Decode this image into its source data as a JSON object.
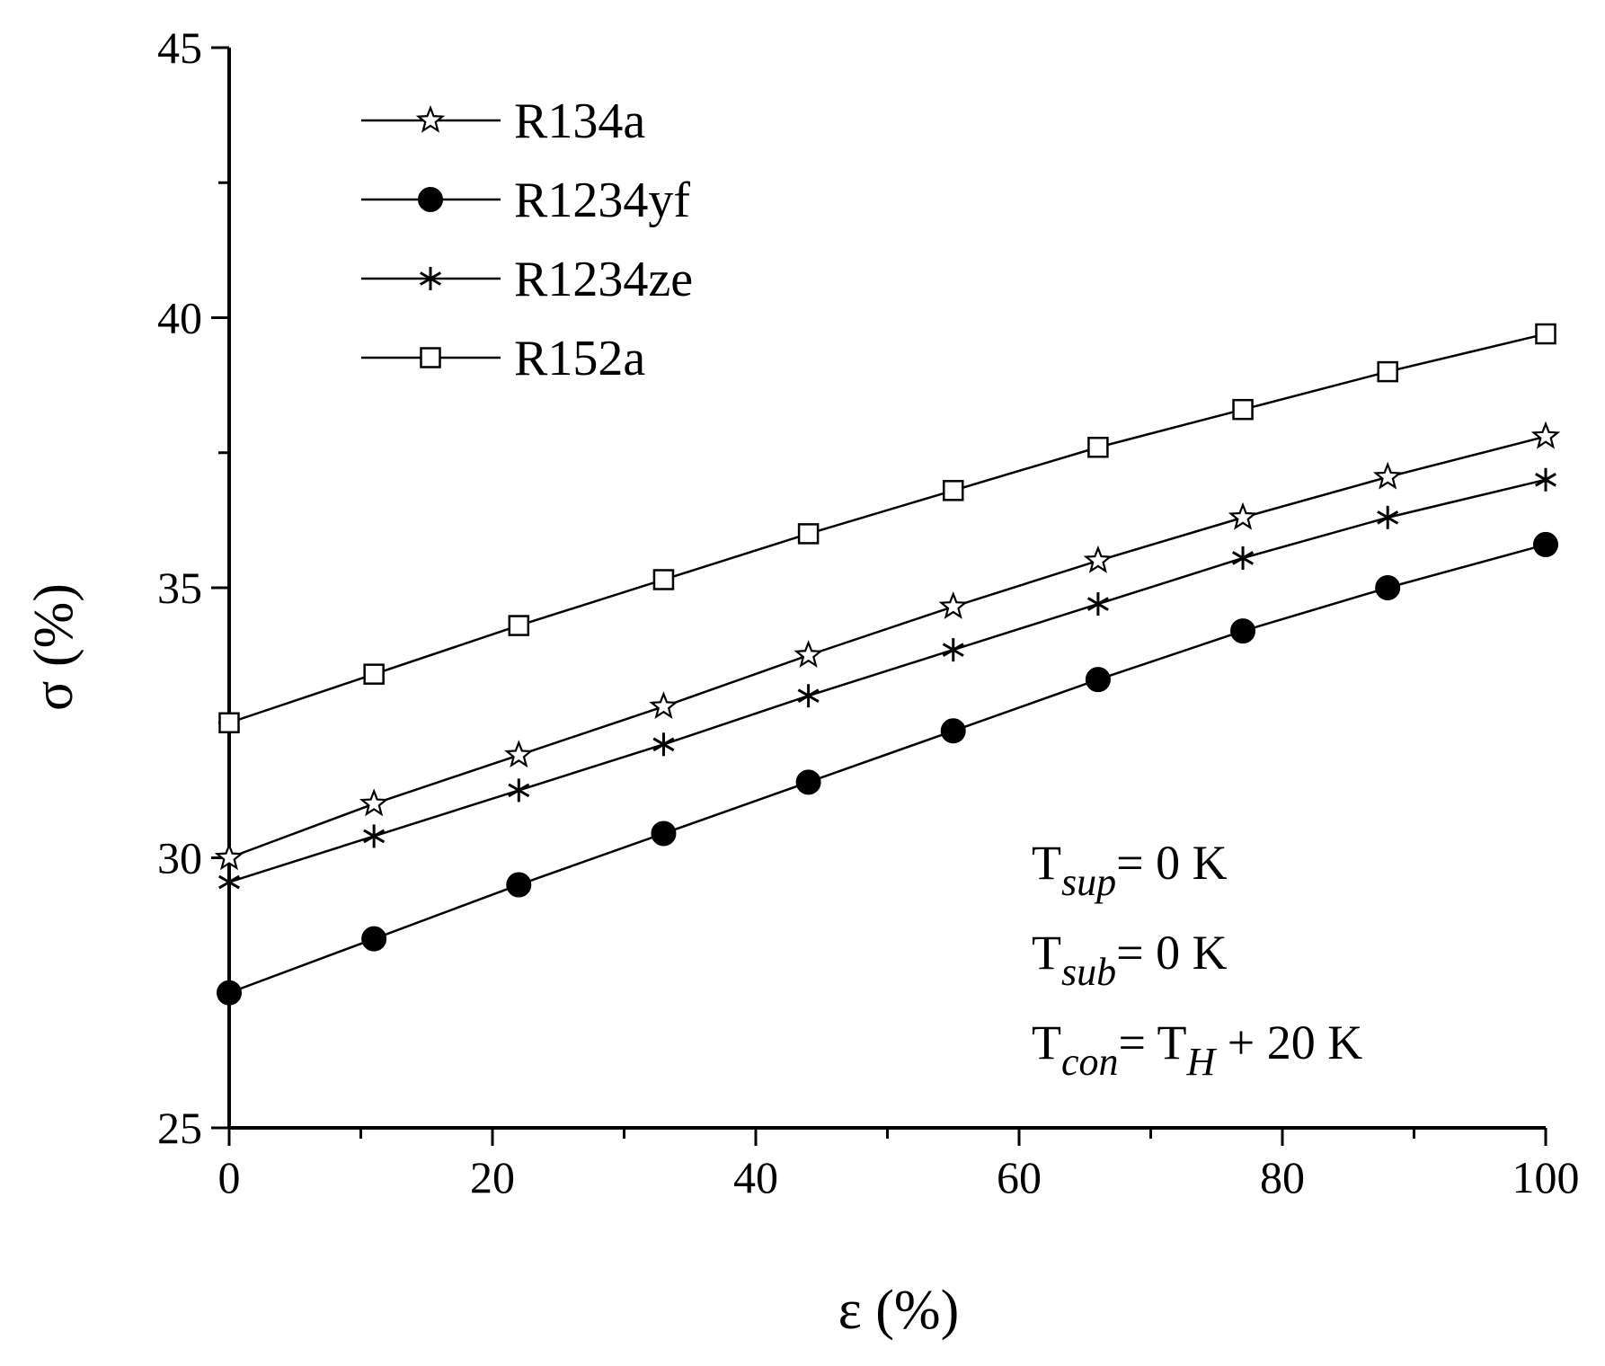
{
  "chart_data": {
    "type": "line",
    "xlabel": "ε (%)",
    "ylabel": "σ (%)",
    "xlim": [
      0,
      100
    ],
    "ylim": [
      25,
      45
    ],
    "xticks": [
      0,
      20,
      40,
      60,
      80,
      100
    ],
    "yticks": [
      25,
      30,
      35,
      40,
      45
    ],
    "grid": false,
    "legend_position": "top-left",
    "x": [
      0,
      11,
      22,
      33,
      44,
      55,
      66,
      77,
      88,
      100
    ],
    "series": [
      {
        "name": "R134a",
        "marker": "star-open",
        "values": [
          30.0,
          31.0,
          31.9,
          32.8,
          33.75,
          34.65,
          35.5,
          36.3,
          37.05,
          37.8
        ]
      },
      {
        "name": "R1234yf",
        "marker": "circle-filled",
        "values": [
          27.5,
          28.5,
          29.5,
          30.45,
          31.4,
          32.35,
          33.3,
          34.2,
          35.0,
          35.8
        ]
      },
      {
        "name": "R1234ze",
        "marker": "asterisk",
        "values": [
          29.55,
          30.4,
          31.25,
          32.1,
          33.0,
          33.85,
          34.7,
          35.55,
          36.3,
          37.0
        ]
      },
      {
        "name": "R152a",
        "marker": "square-open",
        "values": [
          32.5,
          33.4,
          34.3,
          35.15,
          36.0,
          36.8,
          37.6,
          38.3,
          39.0,
          39.7
        ]
      }
    ],
    "annotations": [
      {
        "main": "T",
        "sub": "sup",
        "rest": "= 0 K"
      },
      {
        "main": "T",
        "sub": "sub",
        "rest": "= 0 K"
      },
      {
        "main": "T",
        "sub": "con",
        "rest": "= T",
        "sub2": "H",
        "rest2": " + 20 K"
      }
    ]
  }
}
